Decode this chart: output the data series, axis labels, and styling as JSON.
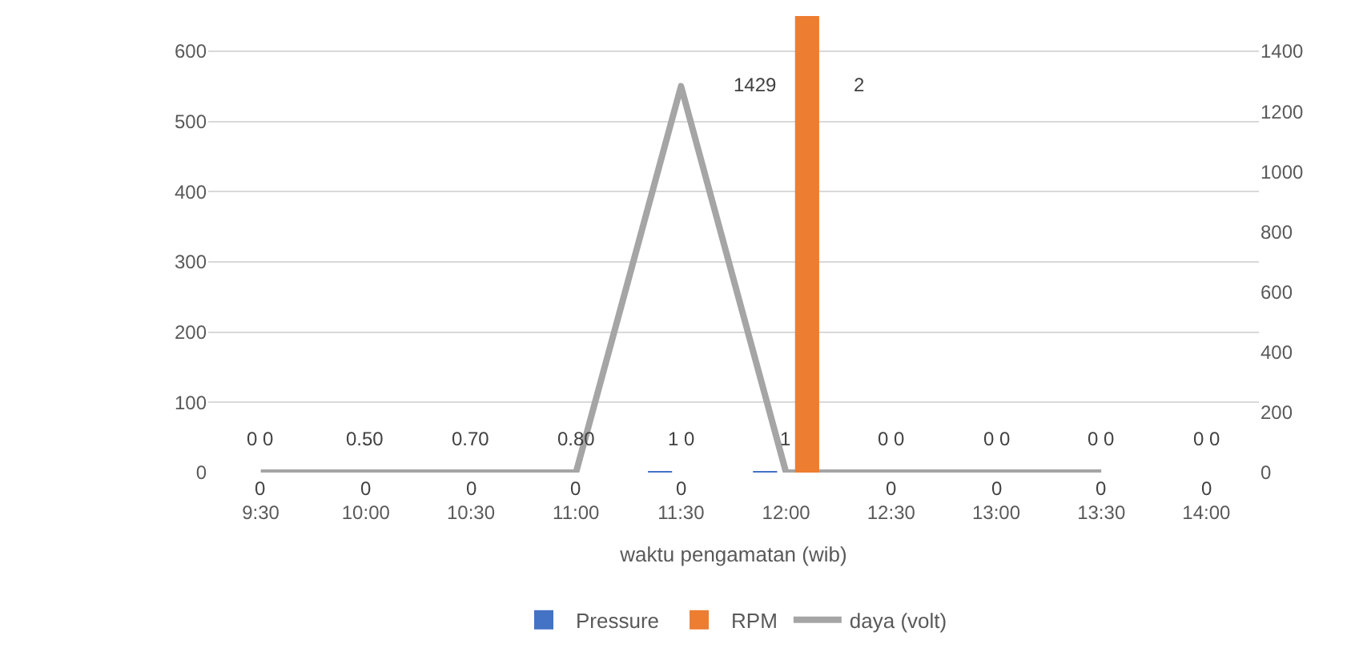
{
  "chart_data": {
    "type": "bar",
    "xlabel": "waktu pengamatan (wib)",
    "categories": [
      "9:30",
      "10:00",
      "10:30",
      "11:00",
      "11:30",
      "12:00",
      "12:30",
      "13:00",
      "13:30",
      "14:00"
    ],
    "series": [
      {
        "name": "Pressure",
        "color": "#4472c4",
        "values": [
          0,
          0.5,
          0.7,
          0.8,
          1,
          1,
          0,
          0,
          0,
          0
        ],
        "value_labels": [
          "0 0",
          "0.50",
          "0.70",
          "0.80",
          "1 0",
          "1",
          "0 0",
          "0 0",
          "0 0",
          "0 0"
        ]
      },
      {
        "name": "RPM",
        "type": "bar",
        "axis": "y2",
        "color": "#ed7d31",
        "values": [
          0,
          0,
          0,
          0,
          0,
          1517,
          0,
          0,
          0,
          0
        ],
        "value_labels": [
          "0",
          "0",
          "0",
          "0",
          "0",
          null,
          "0",
          "0",
          "0",
          "0"
        ]
      },
      {
        "name": "daya (volt)",
        "type": "line",
        "color": "#a5a5a5",
        "values": [
          0,
          0,
          0,
          0,
          550,
          0,
          0,
          0,
          0,
          null
        ]
      }
    ],
    "annotations": [
      "1429",
      "2"
    ],
    "ylim": [
      0,
      650
    ],
    "yticks": [
      0,
      100,
      200,
      300,
      400,
      500,
      600
    ],
    "y2lim": [
      0,
      1517
    ],
    "y2ticks": [
      0,
      200,
      400,
      600,
      800,
      1000,
      1200,
      1400
    ],
    "grid": "y",
    "legend": "bottom",
    "marker": "none",
    "line_style": "solid"
  }
}
